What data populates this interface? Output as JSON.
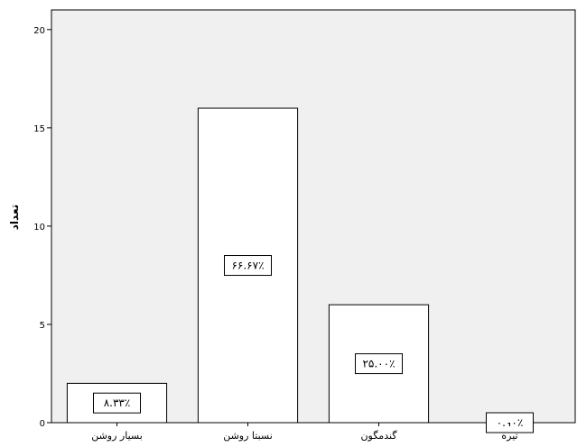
{
  "chart_data": {
    "type": "bar",
    "categories": [
      "بسیار روشن",
      "نسبتا روشن",
      "گندمگون",
      "تیره"
    ],
    "values": [
      2,
      16,
      6,
      0
    ],
    "data_labels": [
      "۸.۳۳٪",
      "۶۶.۶۷٪",
      "۲۵.۰۰٪",
      "۰.۰۰٪"
    ],
    "ylabel": "تعداد",
    "xlabel": "",
    "ylim": [
      0,
      21
    ],
    "yticks": [
      0,
      5,
      10,
      15,
      20
    ],
    "grid": false,
    "colors": {
      "plot_background": "#f0f0f0",
      "bar_fill": "#ffffff",
      "bar_stroke": "#000000"
    }
  }
}
